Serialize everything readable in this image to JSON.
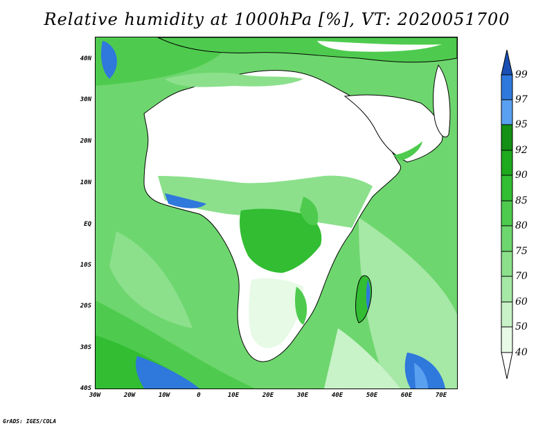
{
  "title": "Relative humidity at 1000hPa [%], VT: 2020051700",
  "credit": "GrADS: IGES/COLA",
  "map": {
    "region": "Africa",
    "variable": "Relative humidity",
    "level": "1000hPa",
    "units": "%"
  },
  "lat_labels": [
    "40N",
    "30N",
    "20N",
    "10N",
    "EQ",
    "10S",
    "20S",
    "30S",
    "40S"
  ],
  "lon_labels": [
    "30W",
    "20W",
    "10W",
    "0",
    "10E",
    "20E",
    "30E",
    "40E",
    "50E",
    "60E",
    "70E"
  ],
  "colorbar": {
    "levels": [
      "40",
      "50",
      "60",
      "70",
      "75",
      "80",
      "85",
      "90",
      "92",
      "95",
      "97",
      "99"
    ],
    "colors": [
      "#ffffff",
      "#e6fae6",
      "#c8f2c8",
      "#a6e8a6",
      "#8ce08c",
      "#6ed66e",
      "#4ecb4e",
      "#32bd32",
      "#1ea91e",
      "#149014",
      "#5aa0f0",
      "#2f78dc",
      "#1a50b4"
    ]
  },
  "colors": {
    "land_dry": "#ffffff",
    "ocean_moist": "#6ed66e",
    "very_humid": "#2f78dc",
    "borders": "#000000"
  }
}
